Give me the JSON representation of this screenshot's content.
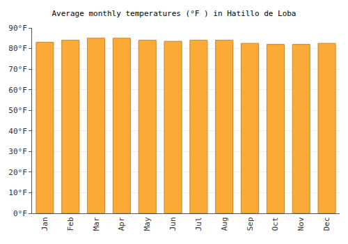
{
  "chart_data": {
    "type": "bar",
    "title": "Average monthly temperatures (°F ) in Hatillo de Loba",
    "categories": [
      "Jan",
      "Feb",
      "Mar",
      "Apr",
      "May",
      "Jun",
      "Jul",
      "Aug",
      "Sep",
      "Oct",
      "Nov",
      "Dec"
    ],
    "values": [
      83,
      84,
      85,
      85,
      84,
      83.5,
      84,
      84,
      82.5,
      82,
      82,
      82.5
    ],
    "color": "#fcaa38",
    "ylim": [
      0,
      90
    ],
    "yticks": [
      {
        "value": 0,
        "label": "0°F"
      },
      {
        "value": 10,
        "label": "10°F"
      },
      {
        "value": 20,
        "label": "20°F"
      },
      {
        "value": 30,
        "label": "30°F"
      },
      {
        "value": 40,
        "label": "40°F"
      },
      {
        "value": 50,
        "label": "50°F"
      },
      {
        "value": 60,
        "label": "60°F"
      },
      {
        "value": 70,
        "label": "70°F"
      },
      {
        "value": 80,
        "label": "80°F"
      },
      {
        "value": 90,
        "label": "90°F"
      }
    ],
    "grid": true
  }
}
